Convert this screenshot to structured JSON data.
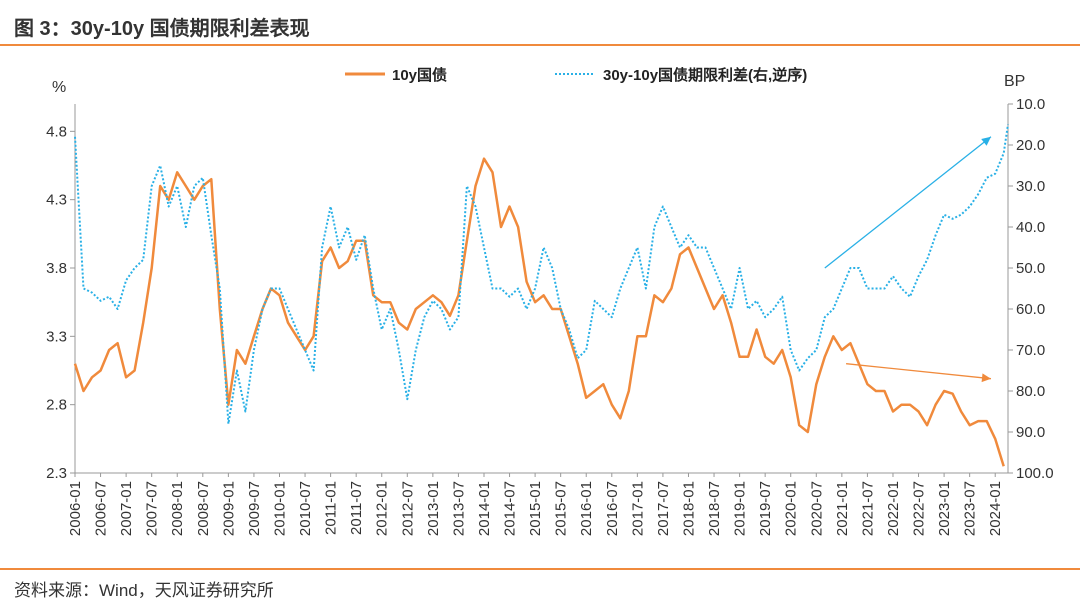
{
  "header": {
    "title": "图 3：30y-10y 国债期限利差表现"
  },
  "footer": {
    "source": "资料来源：Wind，天风证券研究所"
  },
  "chart_data": {
    "type": "line",
    "legend_position": "top",
    "grid": false,
    "colors": {
      "series1": "#f08a3c",
      "series2": "#29b0e6",
      "arrow_up": "#29b0e6",
      "arrow_down": "#f08a3c",
      "axis": "#999999"
    },
    "x_tick_labels": [
      "2006-01",
      "2006-07",
      "2007-01",
      "2007-07",
      "2008-01",
      "2008-07",
      "2009-01",
      "2009-07",
      "2010-01",
      "2010-07",
      "2011-01",
      "2011-07",
      "2012-01",
      "2012-07",
      "2013-01",
      "2013-07",
      "2014-01",
      "2014-07",
      "2015-01",
      "2015-07",
      "2016-01",
      "2016-07",
      "2017-01",
      "2017-07",
      "2018-01",
      "2018-07",
      "2019-01",
      "2019-07",
      "2020-01",
      "2020-07",
      "2021-01",
      "2021-07",
      "2022-01",
      "2022-07",
      "2023-01",
      "2023-07",
      "2024-01"
    ],
    "xlim": [
      "2006-01",
      "2024-04"
    ],
    "y_left": {
      "label": "%",
      "ylim": [
        2.3,
        5.0
      ],
      "ticks": [
        "2.3",
        "2.8",
        "3.3",
        "3.8",
        "4.3",
        "4.8"
      ]
    },
    "y_right": {
      "label": "BP",
      "ylim": [
        100,
        10
      ],
      "reversed": true,
      "ticks": [
        "10.0",
        "20.0",
        "30.0",
        "40.0",
        "50.0",
        "60.0",
        "70.0",
        "80.0",
        "90.0",
        "100.0"
      ]
    },
    "series": [
      {
        "name": "10y国债",
        "axis": "left",
        "style": "solid",
        "points": [
          [
            "2006-01",
            3.1
          ],
          [
            "2006-03",
            2.9
          ],
          [
            "2006-05",
            3.0
          ],
          [
            "2006-07",
            3.05
          ],
          [
            "2006-09",
            3.2
          ],
          [
            "2006-11",
            3.25
          ],
          [
            "2007-01",
            3.0
          ],
          [
            "2007-03",
            3.05
          ],
          [
            "2007-05",
            3.4
          ],
          [
            "2007-07",
            3.8
          ],
          [
            "2007-09",
            4.4
          ],
          [
            "2007-11",
            4.3
          ],
          [
            "2008-01",
            4.5
          ],
          [
            "2008-03",
            4.4
          ],
          [
            "2008-05",
            4.3
          ],
          [
            "2008-07",
            4.4
          ],
          [
            "2008-09",
            4.45
          ],
          [
            "2008-11",
            3.5
          ],
          [
            "2009-01",
            2.8
          ],
          [
            "2009-03",
            3.2
          ],
          [
            "2009-05",
            3.1
          ],
          [
            "2009-07",
            3.3
          ],
          [
            "2009-09",
            3.5
          ],
          [
            "2009-11",
            3.65
          ],
          [
            "2010-01",
            3.6
          ],
          [
            "2010-03",
            3.4
          ],
          [
            "2010-05",
            3.3
          ],
          [
            "2010-07",
            3.2
          ],
          [
            "2010-09",
            3.3
          ],
          [
            "2010-11",
            3.85
          ],
          [
            "2011-01",
            3.95
          ],
          [
            "2011-03",
            3.8
          ],
          [
            "2011-05",
            3.85
          ],
          [
            "2011-07",
            4.0
          ],
          [
            "2011-09",
            4.0
          ],
          [
            "2011-11",
            3.6
          ],
          [
            "2012-01",
            3.55
          ],
          [
            "2012-03",
            3.55
          ],
          [
            "2012-05",
            3.4
          ],
          [
            "2012-07",
            3.35
          ],
          [
            "2012-09",
            3.5
          ],
          [
            "2012-11",
            3.55
          ],
          [
            "2013-01",
            3.6
          ],
          [
            "2013-03",
            3.55
          ],
          [
            "2013-05",
            3.45
          ],
          [
            "2013-07",
            3.6
          ],
          [
            "2013-09",
            4.0
          ],
          [
            "2013-11",
            4.4
          ],
          [
            "2014-01",
            4.6
          ],
          [
            "2014-03",
            4.5
          ],
          [
            "2014-05",
            4.1
          ],
          [
            "2014-07",
            4.25
          ],
          [
            "2014-09",
            4.1
          ],
          [
            "2014-11",
            3.7
          ],
          [
            "2015-01",
            3.55
          ],
          [
            "2015-03",
            3.6
          ],
          [
            "2015-05",
            3.5
          ],
          [
            "2015-07",
            3.5
          ],
          [
            "2015-09",
            3.3
          ],
          [
            "2015-11",
            3.1
          ],
          [
            "2016-01",
            2.85
          ],
          [
            "2016-03",
            2.9
          ],
          [
            "2016-05",
            2.95
          ],
          [
            "2016-07",
            2.8
          ],
          [
            "2016-09",
            2.7
          ],
          [
            "2016-11",
            2.9
          ],
          [
            "2017-01",
            3.3
          ],
          [
            "2017-03",
            3.3
          ],
          [
            "2017-05",
            3.6
          ],
          [
            "2017-07",
            3.55
          ],
          [
            "2017-09",
            3.65
          ],
          [
            "2017-11",
            3.9
          ],
          [
            "2018-01",
            3.95
          ],
          [
            "2018-03",
            3.8
          ],
          [
            "2018-05",
            3.65
          ],
          [
            "2018-07",
            3.5
          ],
          [
            "2018-09",
            3.6
          ],
          [
            "2018-11",
            3.4
          ],
          [
            "2019-01",
            3.15
          ],
          [
            "2019-03",
            3.15
          ],
          [
            "2019-05",
            3.35
          ],
          [
            "2019-07",
            3.15
          ],
          [
            "2019-09",
            3.1
          ],
          [
            "2019-11",
            3.2
          ],
          [
            "2020-01",
            3.0
          ],
          [
            "2020-03",
            2.65
          ],
          [
            "2020-05",
            2.6
          ],
          [
            "2020-07",
            2.95
          ],
          [
            "2020-09",
            3.15
          ],
          [
            "2020-11",
            3.3
          ],
          [
            "2021-01",
            3.2
          ],
          [
            "2021-03",
            3.25
          ],
          [
            "2021-05",
            3.1
          ],
          [
            "2021-07",
            2.95
          ],
          [
            "2021-09",
            2.9
          ],
          [
            "2021-11",
            2.9
          ],
          [
            "2022-01",
            2.75
          ],
          [
            "2022-03",
            2.8
          ],
          [
            "2022-05",
            2.8
          ],
          [
            "2022-07",
            2.75
          ],
          [
            "2022-09",
            2.65
          ],
          [
            "2022-11",
            2.8
          ],
          [
            "2023-01",
            2.9
          ],
          [
            "2023-03",
            2.88
          ],
          [
            "2023-05",
            2.75
          ],
          [
            "2023-07",
            2.65
          ],
          [
            "2023-09",
            2.68
          ],
          [
            "2023-11",
            2.68
          ],
          [
            "2024-01",
            2.55
          ],
          [
            "2024-03",
            2.35
          ]
        ]
      },
      {
        "name": "30y-10y国债期限利差(右,逆序)",
        "axis": "right",
        "style": "dotted",
        "points": [
          [
            "2006-01",
            18
          ],
          [
            "2006-03",
            55
          ],
          [
            "2006-05",
            56
          ],
          [
            "2006-07",
            58
          ],
          [
            "2006-09",
            57
          ],
          [
            "2006-11",
            60
          ],
          [
            "2007-01",
            53
          ],
          [
            "2007-03",
            50
          ],
          [
            "2007-05",
            48
          ],
          [
            "2007-07",
            30
          ],
          [
            "2007-09",
            25
          ],
          [
            "2007-11",
            35
          ],
          [
            "2008-01",
            30
          ],
          [
            "2008-03",
            40
          ],
          [
            "2008-05",
            30
          ],
          [
            "2008-07",
            28
          ],
          [
            "2008-09",
            42
          ],
          [
            "2008-11",
            55
          ],
          [
            "2009-01",
            88
          ],
          [
            "2009-03",
            75
          ],
          [
            "2009-05",
            85
          ],
          [
            "2009-07",
            70
          ],
          [
            "2009-09",
            60
          ],
          [
            "2009-11",
            55
          ],
          [
            "2010-01",
            55
          ],
          [
            "2010-03",
            60
          ],
          [
            "2010-05",
            65
          ],
          [
            "2010-07",
            70
          ],
          [
            "2010-09",
            75
          ],
          [
            "2010-11",
            45
          ],
          [
            "2011-01",
            35
          ],
          [
            "2011-03",
            45
          ],
          [
            "2011-05",
            40
          ],
          [
            "2011-07",
            48
          ],
          [
            "2011-09",
            42
          ],
          [
            "2011-11",
            55
          ],
          [
            "2012-01",
            65
          ],
          [
            "2012-03",
            60
          ],
          [
            "2012-05",
            70
          ],
          [
            "2012-07",
            82
          ],
          [
            "2012-09",
            70
          ],
          [
            "2012-11",
            62
          ],
          [
            "2013-01",
            58
          ],
          [
            "2013-03",
            60
          ],
          [
            "2013-05",
            65
          ],
          [
            "2013-07",
            62
          ],
          [
            "2013-09",
            30
          ],
          [
            "2013-11",
            35
          ],
          [
            "2014-01",
            45
          ],
          [
            "2014-03",
            55
          ],
          [
            "2014-05",
            55
          ],
          [
            "2014-07",
            57
          ],
          [
            "2014-09",
            55
          ],
          [
            "2014-11",
            60
          ],
          [
            "2015-01",
            55
          ],
          [
            "2015-03",
            45
          ],
          [
            "2015-05",
            50
          ],
          [
            "2015-07",
            60
          ],
          [
            "2015-09",
            65
          ],
          [
            "2015-11",
            72
          ],
          [
            "2016-01",
            70
          ],
          [
            "2016-03",
            58
          ],
          [
            "2016-05",
            60
          ],
          [
            "2016-07",
            62
          ],
          [
            "2016-09",
            55
          ],
          [
            "2016-11",
            50
          ],
          [
            "2017-01",
            45
          ],
          [
            "2017-03",
            55
          ],
          [
            "2017-05",
            40
          ],
          [
            "2017-07",
            35
          ],
          [
            "2017-09",
            40
          ],
          [
            "2017-11",
            45
          ],
          [
            "2018-01",
            42
          ],
          [
            "2018-03",
            45
          ],
          [
            "2018-05",
            45
          ],
          [
            "2018-07",
            50
          ],
          [
            "2018-09",
            55
          ],
          [
            "2018-11",
            60
          ],
          [
            "2019-01",
            50
          ],
          [
            "2019-03",
            60
          ],
          [
            "2019-05",
            58
          ],
          [
            "2019-07",
            62
          ],
          [
            "2019-09",
            60
          ],
          [
            "2019-11",
            57
          ],
          [
            "2020-01",
            70
          ],
          [
            "2020-03",
            75
          ],
          [
            "2020-05",
            72
          ],
          [
            "2020-07",
            70
          ],
          [
            "2020-09",
            62
          ],
          [
            "2020-11",
            60
          ],
          [
            "2021-01",
            55
          ],
          [
            "2021-03",
            50
          ],
          [
            "2021-05",
            50
          ],
          [
            "2021-07",
            55
          ],
          [
            "2021-09",
            55
          ],
          [
            "2021-11",
            55
          ],
          [
            "2022-01",
            52
          ],
          [
            "2022-03",
            55
          ],
          [
            "2022-05",
            57
          ],
          [
            "2022-07",
            52
          ],
          [
            "2022-09",
            48
          ],
          [
            "2022-11",
            42
          ],
          [
            "2023-01",
            37
          ],
          [
            "2023-03",
            38
          ],
          [
            "2023-05",
            37
          ],
          [
            "2023-07",
            35
          ],
          [
            "2023-09",
            32
          ],
          [
            "2023-11",
            28
          ],
          [
            "2024-01",
            27
          ],
          [
            "2024-03",
            22
          ],
          [
            "2024-04",
            15
          ]
        ]
      }
    ],
    "annotations": [
      {
        "type": "arrow",
        "color": "#29b0e6",
        "from": [
          "2020-09",
          50
        ],
        "to": [
          "2023-12",
          18
        ],
        "axis": "right"
      },
      {
        "type": "arrow",
        "color": "#f08a3c",
        "from": [
          "2021-02",
          3.1
        ],
        "to": [
          "2023-12",
          2.99
        ],
        "axis": "left"
      }
    ]
  }
}
